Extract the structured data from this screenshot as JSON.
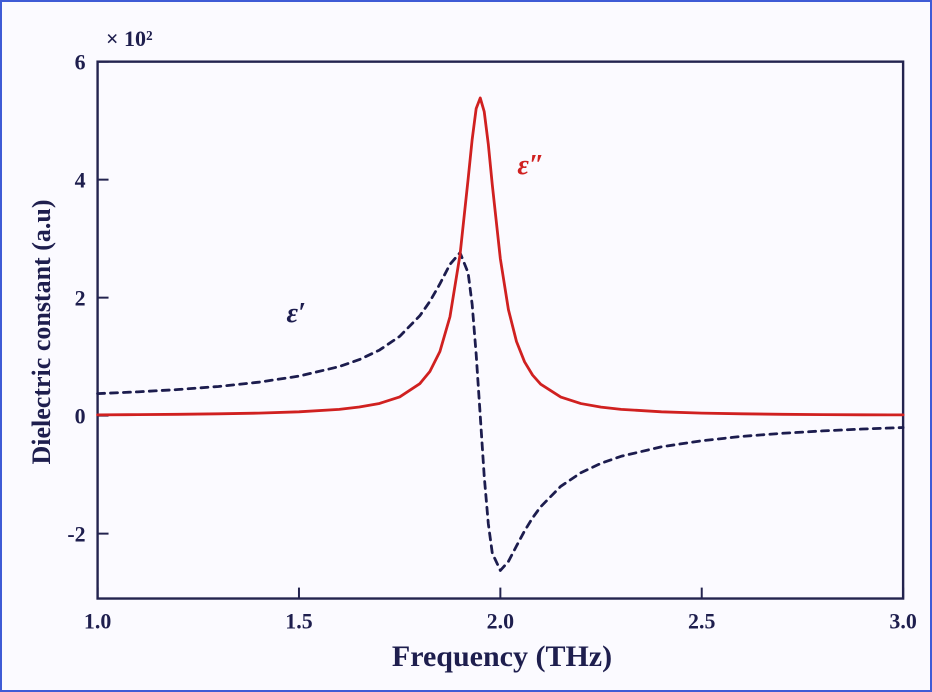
{
  "colors": {
    "background": "#fbfaff",
    "frame_border": "#3f5bd6",
    "axis": "#23234f",
    "text": "#1e1e4e",
    "curve_imaginary": "#d02020",
    "curve_real": "#1c1c4e"
  },
  "chart_data": {
    "type": "line",
    "title": "",
    "xlabel": "Frequency (THz)",
    "ylabel": "Dielectric constant (a.u)",
    "exponent_label": "× 10²",
    "xlim": [
      1.0,
      3.0
    ],
    "ylim": [
      -3.1,
      6.0
    ],
    "grid": false,
    "legend": "none (inline curve labels)",
    "xticks": [
      {
        "value": 1.0,
        "label": "1.0"
      },
      {
        "value": 1.5,
        "label": "1.5"
      },
      {
        "value": 2.0,
        "label": "2.0"
      },
      {
        "value": 2.5,
        "label": "2.5"
      },
      {
        "value": 3.0,
        "label": "3.0"
      }
    ],
    "yticks": [
      {
        "value": -2,
        "label": "-2"
      },
      {
        "value": 0,
        "label": "0"
      },
      {
        "value": 2,
        "label": "2"
      },
      {
        "value": 4,
        "label": "4"
      },
      {
        "value": 6,
        "label": "6"
      }
    ],
    "x": [
      1.0,
      1.1,
      1.2,
      1.3,
      1.4,
      1.5,
      1.6,
      1.65,
      1.7,
      1.75,
      1.8,
      1.825,
      1.85,
      1.875,
      1.9,
      1.92,
      1.93,
      1.94,
      1.95,
      1.96,
      1.97,
      1.98,
      2.0,
      2.02,
      2.04,
      2.06,
      2.08,
      2.1,
      2.15,
      2.2,
      2.25,
      2.3,
      2.4,
      2.5,
      2.6,
      2.7,
      2.8,
      2.9,
      3.0
    ],
    "series": [
      {
        "id": "epsilon-real",
        "name": "ε′ (real part, dashed)",
        "color": "#1c1c4e",
        "dash": "7 6",
        "values": [
          0.374,
          0.404,
          0.443,
          0.495,
          0.567,
          0.67,
          0.831,
          0.95,
          1.112,
          1.344,
          1.693,
          1.936,
          2.234,
          2.564,
          2.763,
          2.422,
          1.883,
          1.043,
          0.0,
          -1.028,
          -1.831,
          -2.33,
          -2.625,
          -2.472,
          -2.211,
          -1.954,
          -1.731,
          -1.544,
          -1.198,
          -0.969,
          -0.808,
          -0.689,
          -0.528,
          -0.425,
          -0.352,
          -0.299,
          -0.259,
          -0.227,
          -0.201
        ]
      },
      {
        "id": "epsilon-imag",
        "name": "ε″ (imaginary part, solid red)",
        "color": "#d02020",
        "dash": "",
        "values": [
          0.013,
          0.017,
          0.023,
          0.031,
          0.043,
          0.065,
          0.107,
          0.145,
          0.207,
          0.318,
          0.542,
          0.749,
          1.088,
          1.676,
          2.727,
          4.005,
          4.683,
          5.203,
          5.385,
          5.152,
          4.601,
          3.913,
          2.658,
          1.797,
          1.256,
          0.913,
          0.687,
          0.534,
          0.314,
          0.205,
          0.144,
          0.107,
          0.065,
          0.043,
          0.031,
          0.023,
          0.018,
          0.014,
          0.012
        ]
      }
    ],
    "resonance_frequency_THz": 1.95,
    "annotations": [
      {
        "text": "ε″",
        "curve": "epsilon-imag",
        "color": "#d02020",
        "x": 2.07,
        "y": 4.25
      },
      {
        "text": "ε′",
        "curve": "epsilon-real",
        "color": "#1c1c4e",
        "x": 1.49,
        "y": 1.75
      }
    ]
  }
}
